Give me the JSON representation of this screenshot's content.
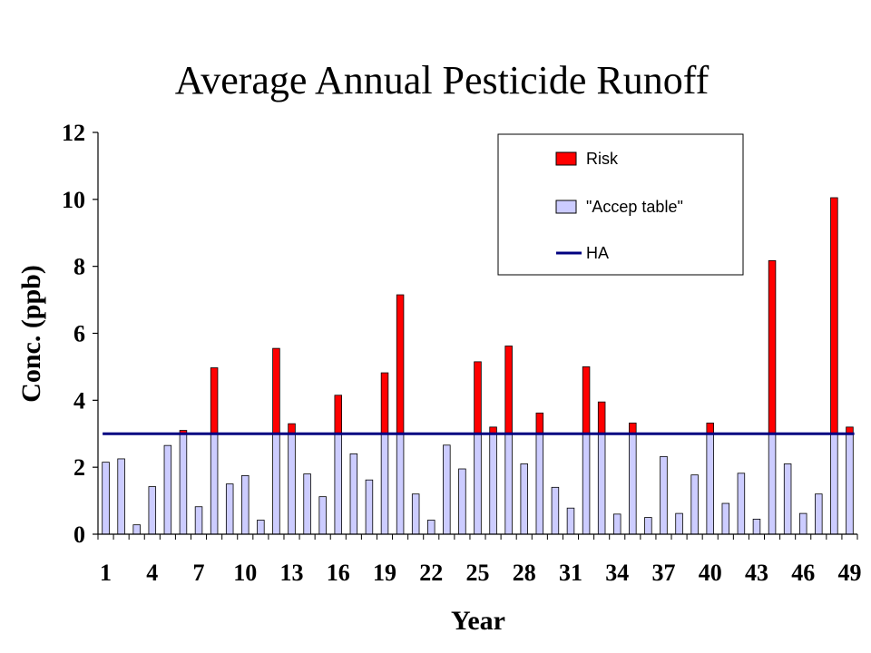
{
  "chart_data": {
    "type": "bar",
    "title": "Average Annual Pesticide Runoff",
    "xlabel": "Year",
    "ylabel": "Conc. (ppb)",
    "ylim": [
      0,
      12
    ],
    "yticks": [
      "0",
      "2",
      "4",
      "6",
      "8",
      "10",
      "12"
    ],
    "x": [
      1,
      2,
      3,
      4,
      5,
      6,
      7,
      8,
      9,
      10,
      11,
      12,
      13,
      14,
      15,
      16,
      17,
      18,
      19,
      20,
      21,
      22,
      23,
      24,
      25,
      26,
      27,
      28,
      29,
      30,
      31,
      32,
      33,
      34,
      35,
      36,
      37,
      38,
      39,
      40,
      41,
      42,
      43,
      44,
      45,
      46,
      47,
      48,
      49
    ],
    "xtick_labels": [
      "1",
      "4",
      "7",
      "10",
      "13",
      "16",
      "19",
      "22",
      "25",
      "28",
      "31",
      "34",
      "37",
      "40",
      "43",
      "46",
      "49"
    ],
    "values": [
      2.15,
      2.25,
      0.28,
      1.42,
      2.65,
      3.1,
      0.82,
      4.97,
      1.5,
      1.75,
      0.42,
      5.55,
      3.3,
      1.8,
      1.12,
      4.15,
      2.4,
      1.62,
      4.82,
      7.15,
      1.2,
      0.42,
      2.66,
      1.95,
      5.15,
      3.2,
      5.62,
      2.1,
      3.62,
      1.4,
      0.78,
      5.0,
      3.95,
      0.6,
      3.32,
      0.5,
      2.32,
      0.62,
      1.77,
      3.32,
      0.92,
      1.82,
      0.45,
      8.17,
      2.1,
      0.62,
      1.2,
      10.05,
      3.2
    ],
    "threshold": 3,
    "series": [
      {
        "name": "Risk",
        "color": "#ff0000"
      },
      {
        "name": "\"Accep table\"",
        "color": "#ccccff"
      },
      {
        "name": "HA",
        "color": "#000080"
      }
    ],
    "grid": false,
    "legend_position": "top-right"
  }
}
